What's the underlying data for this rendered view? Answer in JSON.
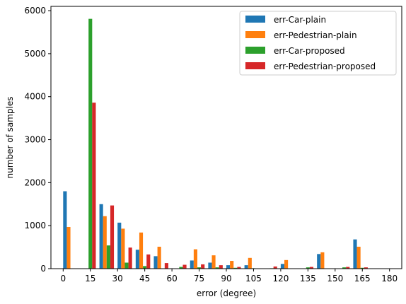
{
  "chart_data": {
    "type": "bar",
    "xlabel": "error (degree)",
    "ylabel": "number of samples",
    "xlim": [
      -6.75,
      186.75
    ],
    "ylim": [
      0,
      6100
    ],
    "x_ticks": [
      0,
      15,
      30,
      45,
      60,
      75,
      90,
      105,
      120,
      135,
      150,
      165,
      180
    ],
    "x_tick_labels": [
      "0",
      "15",
      "30",
      "45",
      "60",
      "75",
      "90",
      "105",
      "120",
      "135",
      "150",
      "165",
      "180"
    ],
    "y_ticks": [
      0,
      1000,
      2000,
      3000,
      4000,
      5000,
      6000
    ],
    "y_tick_labels": [
      "0",
      "1000",
      "2000",
      "3000",
      "4000",
      "5000",
      "6000"
    ],
    "bin_width_degrees": 10,
    "bar_width_degrees": 2,
    "bin_starts": [
      0,
      10,
      20,
      30,
      40,
      50,
      60,
      70,
      80,
      90,
      100,
      110,
      120,
      130,
      140,
      150,
      160,
      170
    ],
    "legend_position": "top-right",
    "series": [
      {
        "name": "err-Car-plain",
        "color": "#1f77b4",
        "values": [
          1800,
          0,
          1500,
          1070,
          440,
          290,
          0,
          190,
          140,
          80,
          80,
          0,
          110,
          0,
          340,
          0,
          680,
          0
        ]
      },
      {
        "name": "err-Pedestrian-plain",
        "color": "#ff7f0e",
        "values": [
          970,
          0,
          1220,
          930,
          840,
          510,
          0,
          450,
          310,
          180,
          250,
          0,
          200,
          0,
          380,
          0,
          510,
          0
        ]
      },
      {
        "name": "err-Car-proposed",
        "color": "#2ca02c",
        "values": [
          0,
          5810,
          540,
          140,
          60,
          0,
          40,
          30,
          30,
          20,
          10,
          10,
          0,
          30,
          0,
          30,
          20,
          0
        ]
      },
      {
        "name": "err-Pedestrian-proposed",
        "color": "#d62728",
        "values": [
          0,
          3860,
          1470,
          490,
          330,
          130,
          90,
          100,
          80,
          40,
          0,
          50,
          0,
          40,
          0,
          40,
          30,
          0
        ]
      }
    ]
  }
}
